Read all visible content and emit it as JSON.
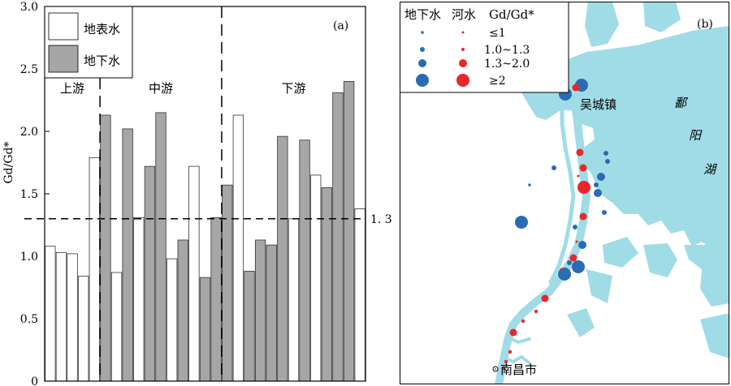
{
  "chart_data": [
    {
      "type": "bar",
      "panel_label": "(a)",
      "ylabel": "Gd/Gd*",
      "ylim": [
        0,
        3.0
      ],
      "yticks": [
        "0",
        "0.5",
        "1.0",
        "1.5",
        "2.0",
        "2.5",
        "3.0"
      ],
      "reference_line": {
        "value": 1.3,
        "label": "1. 3"
      },
      "legend": [
        {
          "name": "地表水",
          "color": "#ffffff"
        },
        {
          "name": "地下水",
          "color": "#a6a6a6"
        }
      ],
      "sections": [
        {
          "label": "上游",
          "start": 0,
          "end": 5
        },
        {
          "label": "中游",
          "start": 5,
          "end": 16
        },
        {
          "label": "下游",
          "start": 16,
          "end": 29
        }
      ],
      "bars": [
        {
          "series": "地表水",
          "value": 1.08
        },
        {
          "series": "地表水",
          "value": 1.03
        },
        {
          "series": "地表水",
          "value": 1.02
        },
        {
          "series": "地表水",
          "value": 0.84
        },
        {
          "series": "地表水",
          "value": 1.79
        },
        {
          "series": "地下水",
          "value": 2.13
        },
        {
          "series": "地表水",
          "value": 0.87
        },
        {
          "series": "地下水",
          "value": 2.02
        },
        {
          "series": "地表水",
          "value": 1.31
        },
        {
          "series": "地下水",
          "value": 1.72
        },
        {
          "series": "地下水",
          "value": 2.15
        },
        {
          "series": "地表水",
          "value": 0.98
        },
        {
          "series": "地下水",
          "value": 1.13
        },
        {
          "series": "地表水",
          "value": 1.72
        },
        {
          "series": "地下水",
          "value": 0.83
        },
        {
          "series": "地下水",
          "value": 1.31
        },
        {
          "series": "地下水",
          "value": 1.57
        },
        {
          "series": "地表水",
          "value": 2.13
        },
        {
          "series": "地下水",
          "value": 0.88
        },
        {
          "series": "地下水",
          "value": 1.13
        },
        {
          "series": "地下水",
          "value": 1.09
        },
        {
          "series": "地下水",
          "value": 1.96
        },
        {
          "series": "地表水",
          "value": 1.3
        },
        {
          "series": "地下水",
          "value": 1.93
        },
        {
          "series": "地表水",
          "value": 1.65
        },
        {
          "series": "地下水",
          "value": 1.55
        },
        {
          "series": "地下水",
          "value": 2.31
        },
        {
          "series": "地下水",
          "value": 2.4
        },
        {
          "series": "地表水",
          "value": 1.38
        }
      ]
    },
    {
      "type": "scatter",
      "panel_label": "(b)",
      "legend": {
        "headers": [
          "地下水",
          "河水",
          "Gd/Gd*"
        ],
        "classes": [
          "≤1",
          "1.0~1.3",
          "1.3~2.0",
          "≥2"
        ],
        "groundwater_color": "#2a6bb3",
        "river_color": "#e8272c"
      },
      "place_labels": {
        "wucheng": "吴城镇",
        "nanchang": "南昌市",
        "lake": [
          "鄱",
          "阳",
          "湖"
        ]
      },
      "colors": {
        "water": "#9fdce6",
        "land": "#ffffff"
      }
    }
  ]
}
